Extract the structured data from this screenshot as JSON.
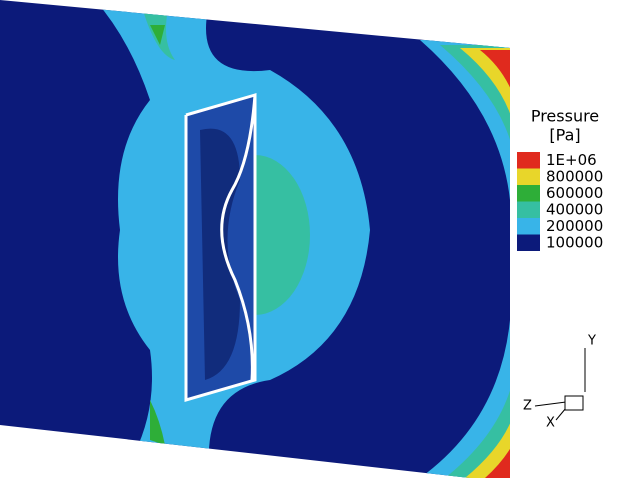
{
  "legend": {
    "title": "Pressure",
    "unit": "[Pa]",
    "levels": [
      {
        "value": {
          "value": 1000000,
          "label": "1E+06"
        },
        "color": "#e02a1e"
      },
      {
        "value": 800000,
        "color": "#e8d62a"
      },
      {
        "value": 600000,
        "color": "#2eae38"
      },
      {
        "value": 400000,
        "color": "#36bfa2"
      },
      {
        "value": 200000,
        "color": "#38b4e8"
      },
      {
        "value": 100000,
        "color": "#0c1a7a"
      }
    ]
  },
  "axes": {
    "y": "Y",
    "z": "Z",
    "x": "X"
  }
}
